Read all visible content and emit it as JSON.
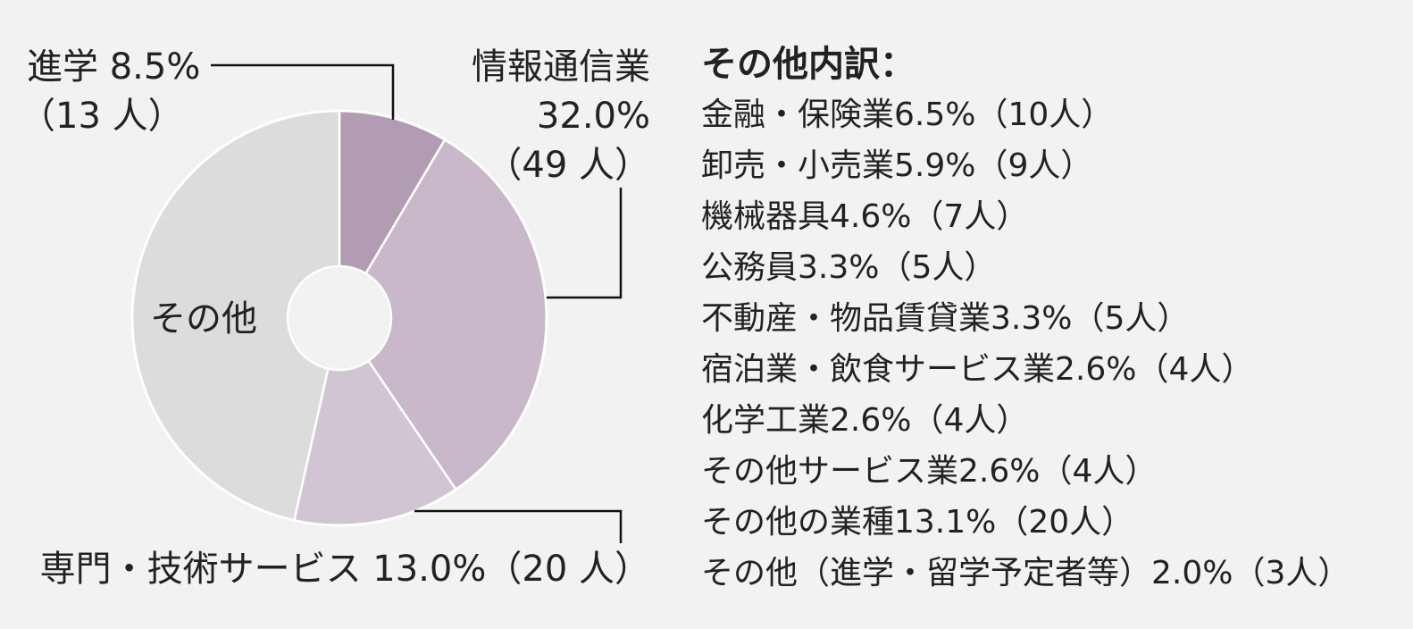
{
  "chart_data": {
    "type": "pie",
    "title": "",
    "slices": [
      {
        "name": "進学",
        "percent": 8.5,
        "count_label": "（13 人）",
        "color": "#b19cb3"
      },
      {
        "name": "情報通信業",
        "percent": 32.0,
        "count_label": "（49 人）",
        "color": "#c8b8ca"
      },
      {
        "name": "専門・技術サービス",
        "percent": 13.0,
        "count_label": "（20 人）",
        "color": "#d2c5d3"
      },
      {
        "name": "その他",
        "percent": 46.5,
        "count_label": "",
        "color": "#dcdcdc"
      }
    ],
    "labels": {
      "shingaku_line1": "進学 8.5%",
      "shingaku_line2": "（13 人）",
      "joho_line1": "情報通信業",
      "joho_line2": "32.0%",
      "joho_line3": "（49 人）",
      "senmon_line1": "専門・技術サービス 13.0%（20 人）",
      "sonota": "その他"
    },
    "breakdown": {
      "title": "その他内訳：",
      "items": [
        "金融・保険業6.5%（10人）",
        "卸売・小売業5.9%（9人）",
        "機械器具4.6%（7人）",
        "公務員3.3%（5人）",
        "不動産・物品賃貸業3.3%（5人）",
        "宿泊業・飲食サービス業2.6%（4人）",
        "化学工業2.6%（4人）",
        "その他サービス業2.6%（4人）",
        "その他の業種13.1%（20人）",
        "その他（進学・留学予定者等）2.0%（3人）"
      ]
    }
  }
}
